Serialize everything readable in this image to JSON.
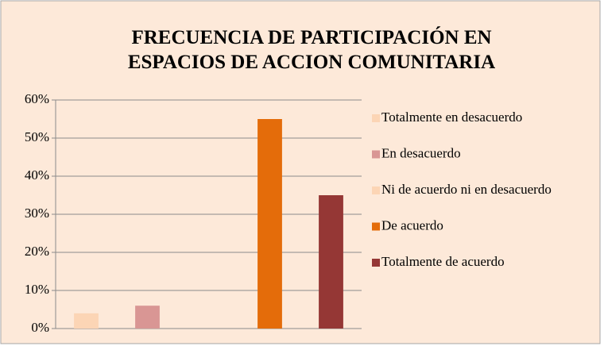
{
  "chart_data": {
    "type": "bar",
    "title": "FRECUENCIA DE PARTICIPACIÓN EN ESPACIOS DE ACCION COMUNITARIA",
    "categories": [
      "Totalmente en desacuerdo",
      "En desacuerdo",
      "Ni de acuerdo ni en desacuerdo",
      "De acuerdo",
      "Totalmente de acuerdo"
    ],
    "values": [
      4,
      6,
      0,
      55,
      35
    ],
    "colors": [
      "#fcd5b5",
      "#d99694",
      "#fcd5b5",
      "#e46c0a",
      "#953735"
    ],
    "ylim": [
      0,
      60
    ],
    "yticks": [
      {
        "value": 0,
        "label": "0%"
      },
      {
        "value": 10,
        "label": "10%"
      },
      {
        "value": 20,
        "label": "20%"
      },
      {
        "value": 30,
        "label": "30%"
      },
      {
        "value": 40,
        "label": "40%"
      },
      {
        "value": 50,
        "label": "50%"
      },
      {
        "value": 60,
        "label": "60%"
      }
    ],
    "grid": true,
    "legend": "right"
  }
}
